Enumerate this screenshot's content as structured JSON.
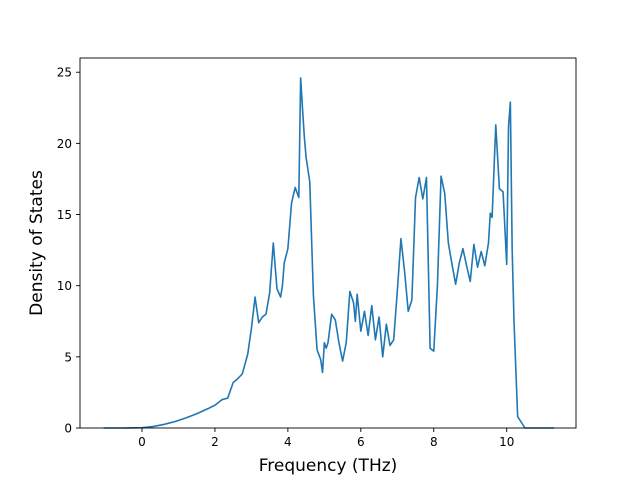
{
  "chart_data": {
    "type": "line",
    "title": "",
    "xlabel": "Frequency (THz)",
    "ylabel": "Density of States",
    "xlim": [
      -1.7,
      11.9
    ],
    "ylim": [
      0,
      26
    ],
    "xticks": [
      0,
      2,
      4,
      6,
      8,
      10
    ],
    "yticks": [
      0,
      5,
      10,
      15,
      20,
      25
    ],
    "grid": false,
    "legend": "none",
    "color": "#1f77b4",
    "series": [
      {
        "x": [
          -1.05,
          -0.5,
          0.0,
          0.3,
          0.6,
          0.9,
          1.2,
          1.5,
          1.8,
          2.0,
          2.2,
          2.35,
          2.5,
          2.6,
          2.75,
          2.9,
          3.0,
          3.1,
          3.2,
          3.3,
          3.4,
          3.5,
          3.6,
          3.7,
          3.8,
          3.85,
          3.9,
          4.0,
          4.1,
          4.2,
          4.3,
          4.35,
          4.4,
          4.45,
          4.5,
          4.6,
          4.7,
          4.8,
          4.9,
          4.95,
          5.0,
          5.05,
          5.1,
          5.2,
          5.3,
          5.4,
          5.5,
          5.6,
          5.7,
          5.8,
          5.85,
          5.9,
          6.0,
          6.1,
          6.2,
          6.3,
          6.4,
          6.5,
          6.6,
          6.7,
          6.8,
          6.9,
          7.0,
          7.1,
          7.2,
          7.3,
          7.4,
          7.5,
          7.6,
          7.7,
          7.8,
          7.9,
          8.0,
          8.1,
          8.2,
          8.3,
          8.4,
          8.5,
          8.6,
          8.7,
          8.8,
          8.9,
          9.0,
          9.1,
          9.2,
          9.3,
          9.4,
          9.5,
          9.55,
          9.6,
          9.7,
          9.8,
          9.9,
          10.0,
          10.05,
          10.1,
          10.15,
          10.2,
          10.3,
          10.5,
          11.3
        ],
        "y": [
          0.0,
          0.0,
          0.02,
          0.1,
          0.25,
          0.45,
          0.7,
          1.0,
          1.35,
          1.6,
          2.0,
          2.1,
          3.2,
          3.4,
          3.8,
          5.2,
          7.0,
          9.2,
          7.4,
          7.8,
          8.0,
          9.5,
          13.0,
          9.8,
          9.2,
          10.0,
          11.6,
          12.6,
          15.8,
          16.9,
          16.2,
          24.6,
          22.5,
          20.5,
          19.0,
          17.3,
          9.3,
          5.5,
          4.8,
          3.9,
          6.0,
          5.6,
          6.0,
          8.0,
          7.6,
          6.0,
          4.7,
          6.0,
          9.6,
          8.8,
          7.5,
          9.4,
          6.8,
          8.2,
          6.5,
          8.6,
          6.2,
          7.8,
          5.0,
          7.3,
          5.8,
          6.2,
          9.6,
          13.3,
          11.0,
          8.2,
          9.0,
          16.2,
          17.6,
          16.1,
          17.6,
          5.6,
          5.4,
          10.0,
          17.7,
          16.5,
          13.0,
          11.5,
          10.1,
          11.6,
          12.6,
          11.4,
          10.3,
          12.9,
          11.3,
          12.4,
          11.4,
          13.0,
          15.1,
          14.8,
          21.3,
          16.8,
          16.6,
          11.5,
          21.2,
          22.9,
          12.5,
          7.5,
          0.8,
          0.0,
          0.0
        ]
      }
    ]
  }
}
